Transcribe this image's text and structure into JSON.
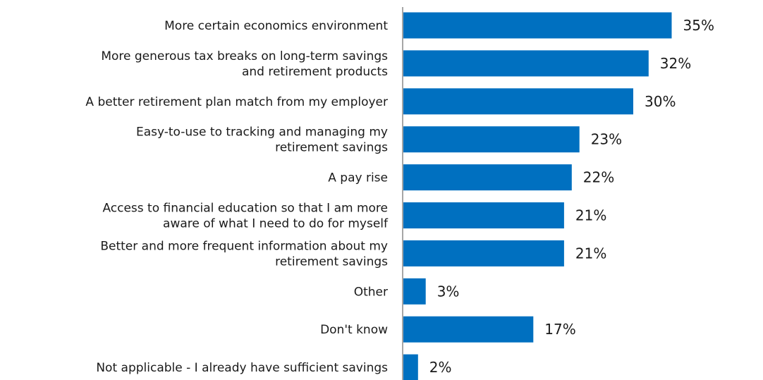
{
  "chart_data": {
    "type": "bar",
    "orientation": "horizontal",
    "categories": [
      [
        "More certain economics environment"
      ],
      [
        "More generous tax breaks on long-term savings",
        "and retirement products"
      ],
      [
        "A better retirement plan match from my employer"
      ],
      [
        "Easy-to-use to tracking and managing my",
        "retirement savings"
      ],
      [
        "A pay rise"
      ],
      [
        "Access to financial education so that I am more",
        "aware of what I need to do for myself"
      ],
      [
        "Better and more frequent information about my",
        "retirement savings"
      ],
      [
        "Other"
      ],
      [
        "Don't know"
      ],
      [
        "Not applicable - I already have sufficient savings"
      ]
    ],
    "values": [
      35,
      32,
      30,
      23,
      22,
      21,
      21,
      3,
      17,
      2
    ],
    "value_labels": [
      "35%",
      "32%",
      "30%",
      "23%",
      "22%",
      "21%",
      "21%",
      "3%",
      "17%",
      "2%"
    ],
    "xlim": [
      0,
      40
    ],
    "bar_color": "#0070c0",
    "axis_color": "#a6a6a6",
    "grid": false,
    "legend": "none"
  }
}
